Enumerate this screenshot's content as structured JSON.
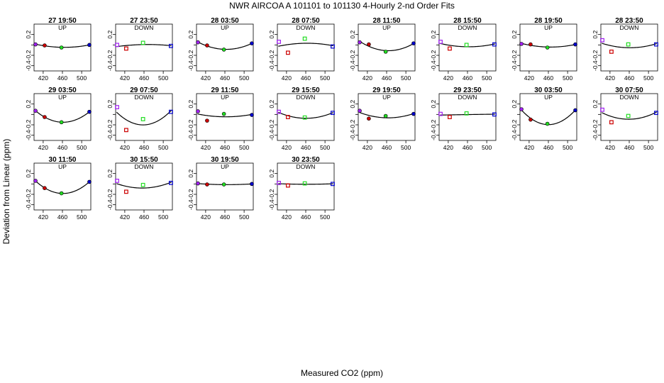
{
  "page": {
    "title": "NWR   AIRCOA A   101101 to 101130   4-Hourly 2-nd Order Fits",
    "xlabel": "Measured CO2 (ppm)",
    "ylabel": "Deviation from Linear (ppm)"
  },
  "colors": {
    "axis": "#000000",
    "fit_curve": "#000000",
    "standard_1": "#a020f0",
    "standard_2": "#cc0000",
    "standard_3": "#22dd22",
    "standard_4": "#0000cc"
  },
  "chart_data": {
    "type": "scatter",
    "grid": false,
    "legend": "none",
    "x_ticks": [
      420,
      460,
      500
    ],
    "y_ticks": [
      "0.2",
      "0.0",
      "-0.2",
      "-0.4"
    ],
    "xlim": [
      401,
      519
    ],
    "ylim": [
      -0.5,
      0.4
    ],
    "panels": [
      {
        "label": "27 19:50",
        "direction": "UP",
        "points": [
          [
            404,
            0.01
          ],
          [
            423,
            -0.01
          ],
          [
            458,
            -0.05
          ],
          [
            516,
            0.0
          ]
        ]
      },
      {
        "label": "27 23:50",
        "direction": "DOWN",
        "points": [
          [
            404,
            0.0
          ],
          [
            423,
            -0.07
          ],
          [
            458,
            0.04
          ],
          [
            516,
            -0.02
          ]
        ]
      },
      {
        "label": "28 03:50",
        "direction": "UP",
        "points": [
          [
            404,
            0.05
          ],
          [
            423,
            -0.01
          ],
          [
            458,
            -0.09
          ],
          [
            516,
            0.03
          ]
        ]
      },
      {
        "label": "28 07:50",
        "direction": "DOWN",
        "points": [
          [
            404,
            0.06
          ],
          [
            423,
            -0.15
          ],
          [
            458,
            0.12
          ],
          [
            516,
            -0.03
          ]
        ]
      },
      {
        "label": "28 11:50",
        "direction": "UP",
        "points": [
          [
            404,
            0.05
          ],
          [
            423,
            0.01
          ],
          [
            458,
            -0.13
          ],
          [
            516,
            0.03
          ]
        ]
      },
      {
        "label": "28 15:50",
        "direction": "DOWN",
        "points": [
          [
            404,
            0.06
          ],
          [
            423,
            -0.07
          ],
          [
            458,
            -0.0
          ],
          [
            516,
            0.01
          ]
        ]
      },
      {
        "label": "28 19:50",
        "direction": "UP",
        "points": [
          [
            404,
            0.02
          ],
          [
            423,
            0.01
          ],
          [
            458,
            -0.05
          ],
          [
            516,
            0.01
          ]
        ]
      },
      {
        "label": "28 23:50",
        "direction": "DOWN",
        "points": [
          [
            404,
            0.09
          ],
          [
            423,
            -0.13
          ],
          [
            458,
            0.01
          ],
          [
            516,
            0.01
          ]
        ]
      },
      {
        "label": "29 03:50",
        "direction": "UP",
        "points": [
          [
            404,
            0.07
          ],
          [
            423,
            -0.05
          ],
          [
            458,
            -0.15
          ],
          [
            516,
            0.05
          ]
        ]
      },
      {
        "label": "29 07:50",
        "direction": "DOWN",
        "points": [
          [
            404,
            0.14
          ],
          [
            423,
            -0.3
          ],
          [
            458,
            -0.09
          ],
          [
            516,
            0.05
          ]
        ]
      },
      {
        "label": "29 11:50",
        "direction": "UP",
        "points": [
          [
            404,
            0.06
          ],
          [
            423,
            -0.12
          ],
          [
            458,
            0.01
          ],
          [
            516,
            -0.01
          ]
        ]
      },
      {
        "label": "29 15:50",
        "direction": "DOWN",
        "points": [
          [
            404,
            0.05
          ],
          [
            423,
            -0.05
          ],
          [
            458,
            -0.06
          ],
          [
            516,
            0.03
          ]
        ]
      },
      {
        "label": "29 19:50",
        "direction": "UP",
        "points": [
          [
            404,
            0.07
          ],
          [
            423,
            -0.08
          ],
          [
            458,
            -0.03
          ],
          [
            516,
            0.01
          ]
        ]
      },
      {
        "label": "29 23:50",
        "direction": "DOWN",
        "points": [
          [
            404,
            0.01
          ],
          [
            423,
            -0.05
          ],
          [
            458,
            0.02
          ],
          [
            516,
            0.0
          ]
        ]
      },
      {
        "label": "30 03:50",
        "direction": "UP",
        "points": [
          [
            404,
            0.1
          ],
          [
            423,
            -0.1
          ],
          [
            458,
            -0.18
          ],
          [
            516,
            0.08
          ]
        ]
      },
      {
        "label": "30 07:50",
        "direction": "DOWN",
        "points": [
          [
            404,
            0.09
          ],
          [
            423,
            -0.15
          ],
          [
            458,
            -0.03
          ],
          [
            516,
            0.03
          ]
        ]
      },
      {
        "label": "30 11:50",
        "direction": "UP",
        "points": [
          [
            404,
            0.06
          ],
          [
            423,
            -0.08
          ],
          [
            458,
            -0.18
          ],
          [
            516,
            0.04
          ]
        ]
      },
      {
        "label": "30 15:50",
        "direction": "DOWN",
        "points": [
          [
            404,
            0.06
          ],
          [
            423,
            -0.15
          ],
          [
            458,
            -0.02
          ],
          [
            516,
            0.02
          ]
        ]
      },
      {
        "label": "30 19:50",
        "direction": "UP",
        "points": [
          [
            404,
            0.01
          ],
          [
            423,
            -0.01
          ],
          [
            458,
            -0.01
          ],
          [
            516,
            0.0
          ]
        ]
      },
      {
        "label": "30 23:50",
        "direction": "DOWN",
        "points": [
          [
            404,
            0.02
          ],
          [
            423,
            -0.03
          ],
          [
            458,
            0.01
          ],
          [
            516,
            0.0
          ]
        ]
      }
    ]
  }
}
